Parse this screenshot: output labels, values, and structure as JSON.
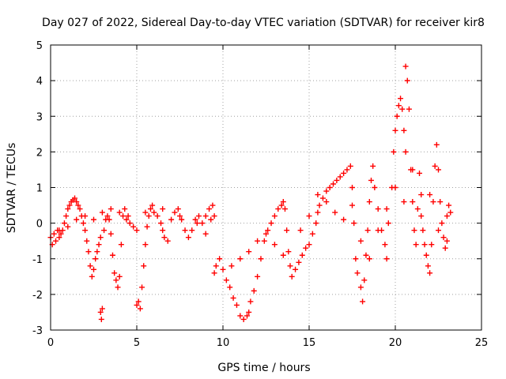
{
  "colors": {
    "series": "#ff0000",
    "grid": "#a0a0a0",
    "axis": "#000000"
  },
  "chart_data": {
    "type": "scatter",
    "marker": "plus",
    "title": "Day 027 of 2022, Sidereal Day-to-day VTEC variation (SDTVAR) for receiver kir8",
    "xlabel": "GPS time / hours",
    "ylabel": "SDTVAR / TECUs",
    "xlim": [
      0,
      25
    ],
    "ylim": [
      -3,
      5
    ],
    "xticks": [
      0,
      5,
      10,
      15,
      20,
      25
    ],
    "yticks": [
      -3,
      -2,
      -1,
      0,
      1,
      2,
      3,
      4,
      5
    ],
    "grid": true,
    "series": [
      {
        "name": "SDTVAR",
        "points": [
          [
            0.0,
            -0.4
          ],
          [
            0.1,
            -0.6
          ],
          [
            0.2,
            -0.3
          ],
          [
            0.3,
            -0.5
          ],
          [
            0.4,
            -0.2
          ],
          [
            0.5,
            -0.4
          ],
          [
            0.6,
            -0.3
          ],
          [
            0.7,
            -0.2
          ],
          [
            0.8,
            0.0
          ],
          [
            0.9,
            0.2
          ],
          [
            1.0,
            0.4
          ],
          [
            1.1,
            0.5
          ],
          [
            1.2,
            0.6
          ],
          [
            1.3,
            0.65
          ],
          [
            1.4,
            0.7
          ],
          [
            1.5,
            0.6
          ],
          [
            1.6,
            0.5
          ],
          [
            1.7,
            0.4
          ],
          [
            1.8,
            0.2
          ],
          [
            1.9,
            0.0
          ],
          [
            2.0,
            -0.2
          ],
          [
            2.1,
            -0.5
          ],
          [
            2.2,
            -0.8
          ],
          [
            2.3,
            -1.2
          ],
          [
            2.4,
            -1.5
          ],
          [
            2.5,
            -1.3
          ],
          [
            2.6,
            -1.0
          ],
          [
            2.7,
            -0.8
          ],
          [
            2.8,
            -0.6
          ],
          [
            2.9,
            -0.4
          ],
          [
            2.9,
            -2.5
          ],
          [
            2.95,
            -2.7
          ],
          [
            3.0,
            -2.4
          ],
          [
            3.1,
            -0.2
          ],
          [
            3.2,
            0.1
          ],
          [
            3.3,
            0.2
          ],
          [
            3.4,
            0.1
          ],
          [
            3.5,
            -0.3
          ],
          [
            3.6,
            -0.9
          ],
          [
            3.7,
            -1.4
          ],
          [
            3.8,
            -1.6
          ],
          [
            3.9,
            -1.8
          ],
          [
            4.0,
            -1.5
          ],
          [
            4.1,
            -0.6
          ],
          [
            4.2,
            0.2
          ],
          [
            4.3,
            0.4
          ],
          [
            4.4,
            0.1
          ],
          [
            4.6,
            0.0
          ],
          [
            4.8,
            -0.1
          ],
          [
            5.0,
            -0.2
          ],
          [
            5.0,
            -2.3
          ],
          [
            5.1,
            -2.2
          ],
          [
            5.2,
            -2.4
          ],
          [
            5.3,
            -1.8
          ],
          [
            5.4,
            -1.2
          ],
          [
            5.5,
            -0.6
          ],
          [
            5.6,
            -0.1
          ],
          [
            5.7,
            0.2
          ],
          [
            5.8,
            0.4
          ],
          [
            5.9,
            0.5
          ],
          [
            6.0,
            0.3
          ],
          [
            6.2,
            0.2
          ],
          [
            6.4,
            0.0
          ],
          [
            6.5,
            -0.2
          ],
          [
            6.6,
            -0.4
          ],
          [
            6.8,
            -0.5
          ],
          [
            7.0,
            0.1
          ],
          [
            7.2,
            0.3
          ],
          [
            7.4,
            0.4
          ],
          [
            7.6,
            0.1
          ],
          [
            7.8,
            -0.2
          ],
          [
            8.0,
            -0.4
          ],
          [
            8.2,
            -0.2
          ],
          [
            8.4,
            0.1
          ],
          [
            8.6,
            0.2
          ],
          [
            8.8,
            0.0
          ],
          [
            9.0,
            0.2
          ],
          [
            9.2,
            0.4
          ],
          [
            9.4,
            0.5
          ],
          [
            9.5,
            0.2
          ],
          [
            9.5,
            -1.4
          ],
          [
            9.6,
            -1.2
          ],
          [
            9.8,
            -1.0
          ],
          [
            10.0,
            -1.3
          ],
          [
            10.2,
            -1.6
          ],
          [
            10.4,
            -1.8
          ],
          [
            10.6,
            -2.1
          ],
          [
            10.8,
            -2.3
          ],
          [
            11.0,
            -2.6
          ],
          [
            11.2,
            -2.7
          ],
          [
            11.4,
            -2.6
          ],
          [
            11.5,
            -2.5
          ],
          [
            11.6,
            -2.2
          ],
          [
            11.8,
            -1.9
          ],
          [
            12.0,
            -1.5
          ],
          [
            12.2,
            -1.0
          ],
          [
            12.4,
            -0.5
          ],
          [
            12.6,
            -0.2
          ],
          [
            12.8,
            0.0
          ],
          [
            13.0,
            0.2
          ],
          [
            13.2,
            0.4
          ],
          [
            13.4,
            0.5
          ],
          [
            13.5,
            0.6
          ],
          [
            13.6,
            0.4
          ],
          [
            13.7,
            -0.2
          ],
          [
            13.8,
            -0.8
          ],
          [
            13.9,
            -1.2
          ],
          [
            14.0,
            -1.5
          ],
          [
            14.2,
            -1.3
          ],
          [
            14.4,
            -1.1
          ],
          [
            14.6,
            -0.9
          ],
          [
            14.8,
            -0.7
          ],
          [
            15.0,
            -0.6
          ],
          [
            15.2,
            -0.3
          ],
          [
            15.4,
            0.0
          ],
          [
            15.5,
            0.3
          ],
          [
            15.6,
            0.5
          ],
          [
            15.8,
            0.7
          ],
          [
            16.0,
            0.9
          ],
          [
            16.2,
            1.0
          ],
          [
            16.4,
            1.1
          ],
          [
            16.6,
            1.2
          ],
          [
            16.8,
            1.3
          ],
          [
            17.0,
            1.4
          ],
          [
            17.2,
            1.5
          ],
          [
            17.4,
            1.6
          ],
          [
            17.5,
            1.0
          ],
          [
            17.6,
            0.0
          ],
          [
            17.7,
            -1.0
          ],
          [
            17.8,
            -1.4
          ],
          [
            18.0,
            -1.8
          ],
          [
            18.1,
            -2.2
          ],
          [
            18.2,
            -1.6
          ],
          [
            18.3,
            -0.9
          ],
          [
            18.4,
            -0.2
          ],
          [
            18.5,
            0.6
          ],
          [
            18.6,
            1.2
          ],
          [
            18.7,
            1.6
          ],
          [
            18.8,
            1.0
          ],
          [
            19.0,
            0.4
          ],
          [
            19.2,
            -0.2
          ],
          [
            19.4,
            -0.6
          ],
          [
            19.5,
            -1.0
          ],
          [
            19.6,
            0.0
          ],
          [
            19.8,
            1.0
          ],
          [
            19.9,
            2.0
          ],
          [
            20.0,
            2.6
          ],
          [
            20.1,
            3.0
          ],
          [
            20.2,
            3.3
          ],
          [
            20.3,
            3.5
          ],
          [
            20.4,
            3.2
          ],
          [
            20.5,
            2.6
          ],
          [
            20.6,
            2.0
          ],
          [
            20.6,
            4.4
          ],
          [
            20.7,
            4.0
          ],
          [
            20.8,
            3.2
          ],
          [
            20.9,
            1.5
          ],
          [
            21.0,
            0.6
          ],
          [
            21.1,
            -0.2
          ],
          [
            21.2,
            -0.6
          ],
          [
            21.3,
            0.4
          ],
          [
            21.4,
            1.4
          ],
          [
            21.5,
            0.8
          ],
          [
            21.6,
            -0.2
          ],
          [
            21.7,
            -0.6
          ],
          [
            21.8,
            -0.9
          ],
          [
            21.9,
            -1.2
          ],
          [
            22.0,
            -1.4
          ],
          [
            22.1,
            -0.6
          ],
          [
            22.2,
            0.6
          ],
          [
            22.3,
            1.6
          ],
          [
            22.4,
            2.2
          ],
          [
            22.5,
            1.5
          ],
          [
            22.6,
            0.6
          ],
          [
            22.7,
            0.0
          ],
          [
            22.8,
            -0.4
          ],
          [
            22.9,
            -0.7
          ],
          [
            23.0,
            0.2
          ],
          [
            23.1,
            0.5
          ],
          [
            23.2,
            0.3
          ],
          [
            0.5,
            -0.2
          ],
          [
            1.0,
            -0.1
          ],
          [
            1.5,
            0.1
          ],
          [
            2.0,
            0.2
          ],
          [
            2.5,
            0.1
          ],
          [
            3.0,
            0.3
          ],
          [
            3.5,
            0.4
          ],
          [
            4.0,
            0.3
          ],
          [
            4.5,
            0.2
          ],
          [
            5.5,
            0.3
          ],
          [
            6.5,
            0.4
          ],
          [
            7.5,
            0.2
          ],
          [
            8.5,
            0.0
          ],
          [
            9.0,
            -0.3
          ],
          [
            9.3,
            0.1
          ],
          [
            10.5,
            -1.2
          ],
          [
            11.0,
            -1.0
          ],
          [
            11.5,
            -0.8
          ],
          [
            12.0,
            -0.5
          ],
          [
            12.5,
            -0.3
          ],
          [
            13.0,
            -0.6
          ],
          [
            13.5,
            -0.9
          ],
          [
            14.5,
            -0.2
          ],
          [
            15.0,
            0.2
          ],
          [
            15.5,
            0.8
          ],
          [
            16.0,
            0.6
          ],
          [
            16.5,
            0.3
          ],
          [
            17.0,
            0.1
          ],
          [
            17.5,
            0.5
          ],
          [
            18.0,
            -0.5
          ],
          [
            18.5,
            -1.0
          ],
          [
            19.0,
            -0.2
          ],
          [
            19.5,
            0.4
          ],
          [
            20.0,
            1.0
          ],
          [
            20.5,
            0.6
          ],
          [
            21.0,
            1.5
          ],
          [
            21.5,
            0.2
          ],
          [
            22.0,
            0.8
          ],
          [
            22.5,
            -0.2
          ],
          [
            23.0,
            -0.5
          ]
        ]
      }
    ]
  }
}
